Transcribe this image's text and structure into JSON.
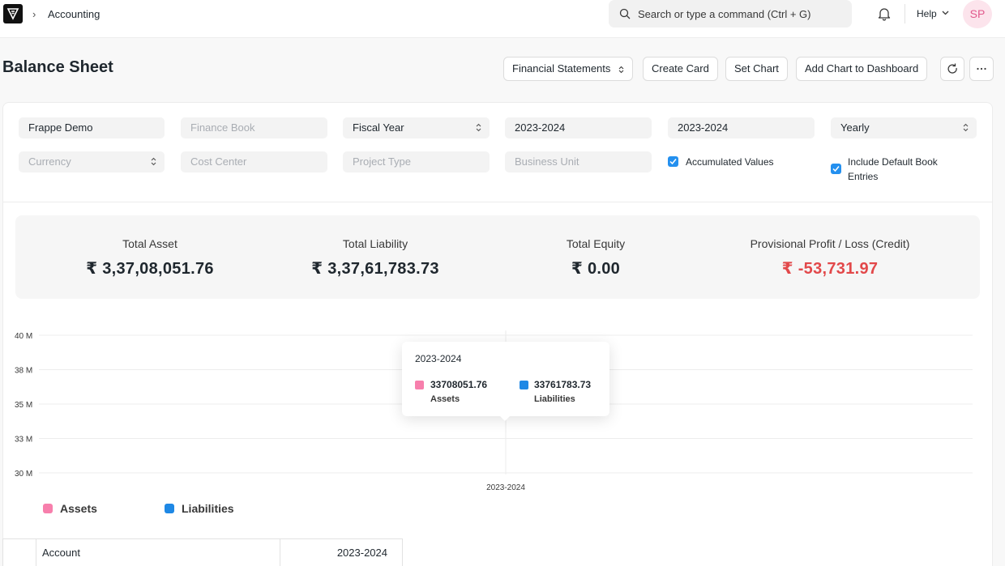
{
  "breadcrumb": {
    "module": "Accounting"
  },
  "search": {
    "placeholder": "Search or type a command (Ctrl + G)"
  },
  "navbar": {
    "help_label": "Help",
    "avatar_initials": "SP"
  },
  "page": {
    "title": "Balance Sheet"
  },
  "toolbar": {
    "financial_statements_label": "Financial Statements",
    "create_card_label": "Create Card",
    "set_chart_label": "Set Chart",
    "add_chart_label": "Add Chart to Dashboard"
  },
  "filters": {
    "company": "Frappe Demo",
    "finance_book_placeholder": "Finance Book",
    "period_type": "Fiscal Year",
    "from_fiscal_year": "2023-2024",
    "to_fiscal_year": "2023-2024",
    "periodicity": "Yearly",
    "currency_placeholder": "Currency",
    "cost_center_placeholder": "Cost Center",
    "project_type_placeholder": "Project Type",
    "business_unit_placeholder": "Business Unit",
    "accumulated_values_label": "Accumulated Values",
    "accumulated_values_checked": true,
    "include_default_book_label_1": "Include Default Book",
    "include_default_book_label_2": "Entries",
    "include_default_book_checked": true
  },
  "summary": [
    {
      "label": "Total Asset",
      "value": "₹ 3,37,08,051.76"
    },
    {
      "label": "Total Liability",
      "value": "₹ 3,37,61,783.73"
    },
    {
      "label": "Total Equity",
      "value": "₹ 0.00"
    },
    {
      "label": "Provisional Profit / Loss (Credit)",
      "value": "₹ -53,731.97"
    }
  ],
  "colors": {
    "assets": "#f77fac",
    "liabilities": "#1e88e5",
    "negative": "#e2484a",
    "checkbox": "#2490ef"
  },
  "chart_data": {
    "type": "bar",
    "categories": [
      "2023-2024"
    ],
    "series": [
      {
        "name": "Assets",
        "values": [
          33708051.76
        ]
      },
      {
        "name": "Liabilities",
        "values": [
          33761783.73
        ]
      }
    ],
    "y_ticks": [
      "40 M",
      "38 M",
      "35 M",
      "33 M",
      "30 M"
    ],
    "x_tick_label": "2023-2024",
    "tooltip": {
      "title": "2023-2024",
      "items": [
        {
          "value": "33708051.76",
          "name": "Assets"
        },
        {
          "value": "33761783.73",
          "name": "Liabilities"
        }
      ]
    },
    "legend": [
      "Assets",
      "Liabilities"
    ],
    "grid": true,
    "legend_position": "bottom-left"
  },
  "table": {
    "account_header": "Account",
    "period_header": "2023-2024"
  }
}
